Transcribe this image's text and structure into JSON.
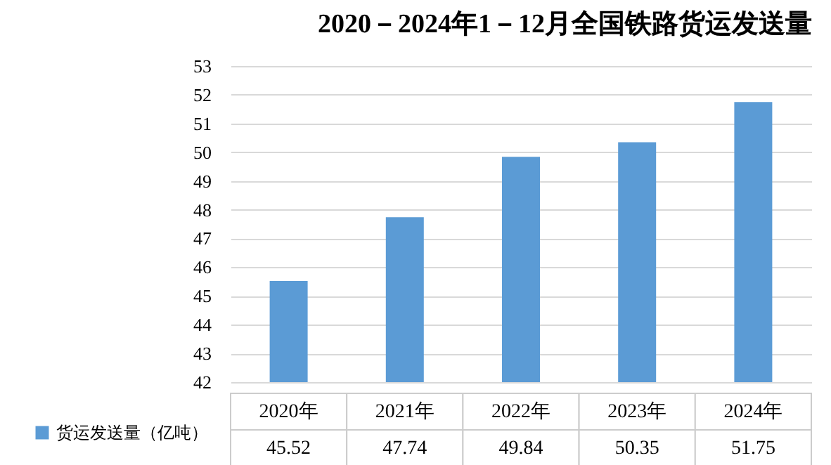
{
  "chart_data": {
    "type": "bar",
    "title": "2020－2024年1－12月全国铁路货运发送量",
    "categories": [
      "2020年",
      "2021年",
      "2022年",
      "2023年",
      "2024年"
    ],
    "series": [
      {
        "name": "货运发送量（亿吨）",
        "color": "#5b9bd5",
        "values": [
          45.52,
          47.74,
          49.84,
          50.35,
          51.75
        ]
      }
    ],
    "ylim": [
      42,
      53
    ],
    "yticks": [
      42,
      43,
      44,
      45,
      46,
      47,
      48,
      49,
      50,
      51,
      52,
      53
    ],
    "grid": "y",
    "data_labels": true,
    "legend": "bottom left"
  }
}
